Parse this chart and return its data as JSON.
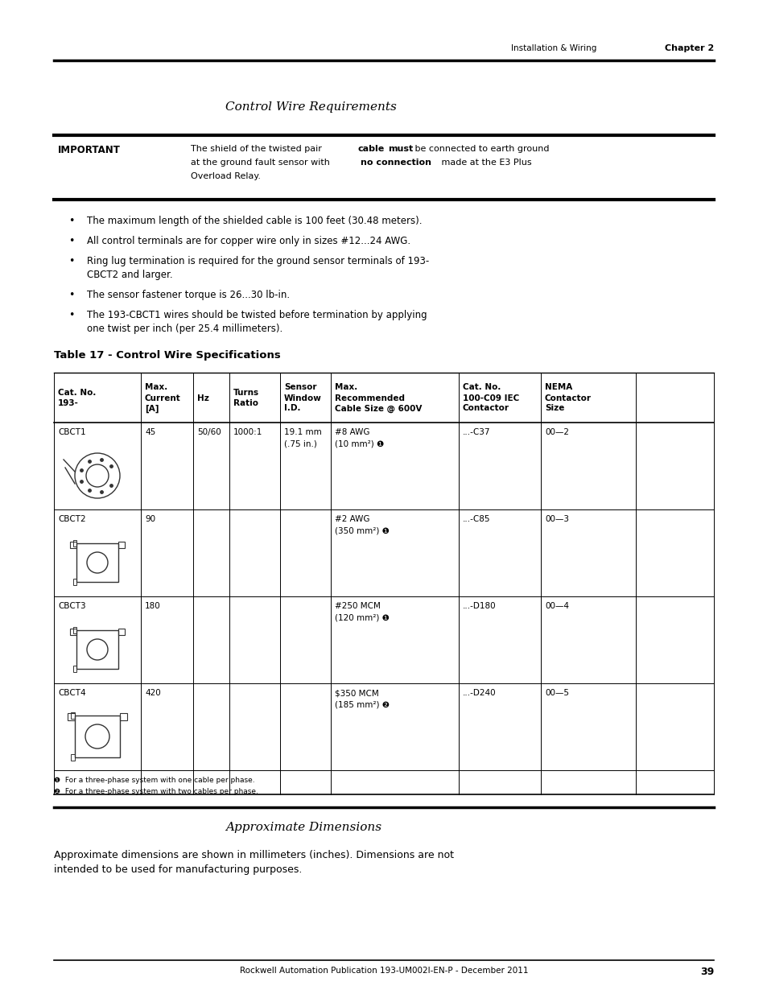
{
  "page_header_left": "Installation & Wiring",
  "page_header_right": "Chapter 2",
  "section_title": "Control Wire Requirements",
  "important_label": "IMPORTANT",
  "bullet_points": [
    "The maximum length of the shielded cable is 100 feet (30.48 meters).",
    "All control terminals are for copper wire only in sizes #12...24 AWG.",
    "Ring lug termination is required for the ground sensor terminals of 193-\nCBCT2 and larger.",
    "The sensor fastener torque is 26...30 lb-in.",
    "The 193-CBCT1 wires should be twisted before termination by applying\none twist per inch (per 25.4 millimeters)."
  ],
  "table_title": "Table 17 - Control Wire Specifications",
  "table_headers": [
    "Cat. No.\n193-",
    "Max.\nCurrent\n[A]",
    "Hz",
    "Turns\nRatio",
    "Sensor\nWindow\nI.D.",
    "Max.\nRecommended\nCable Size @ 600V",
    "Cat. No.\n100-C09 IEC\nContactor",
    "NEMA\nContactor\nSize"
  ],
  "table_rows": [
    [
      "CBCT1",
      "45",
      "50/60",
      "1000:1",
      "19.1 mm\n(.75 in.)",
      "#8 AWG\n(10 mm²) ❶",
      "...-C37",
      "00—2"
    ],
    [
      "CBCT2",
      "90",
      "",
      "",
      "",
      "#2 AWG\n(350 mm²) ❶",
      "...-C85",
      "00—3"
    ],
    [
      "CBCT3",
      "180",
      "",
      "",
      "",
      "#250 MCM\n(120 mm²) ❶",
      "...-D180",
      "00—4"
    ],
    [
      "CBCT4",
      "420",
      "",
      "",
      "",
      "$350 MCM\n(185 mm²) ❷",
      "...-D240",
      "00—5"
    ]
  ],
  "table_footnotes": [
    "❶  For a three-phase system with one cable per phase.",
    "❷  For a three-phase system with two cables per phase."
  ],
  "approx_section_title": "Approximate Dimensions",
  "approx_text_line1": "Approximate dimensions are shown in millimeters (inches). Dimensions are not",
  "approx_text_line2": "intended to be used for manufacturing purposes.",
  "page_footer": "Rockwell Automation Publication 193-UM002I-EN-P - December 2011",
  "page_number": "39",
  "bg_color": "#ffffff"
}
